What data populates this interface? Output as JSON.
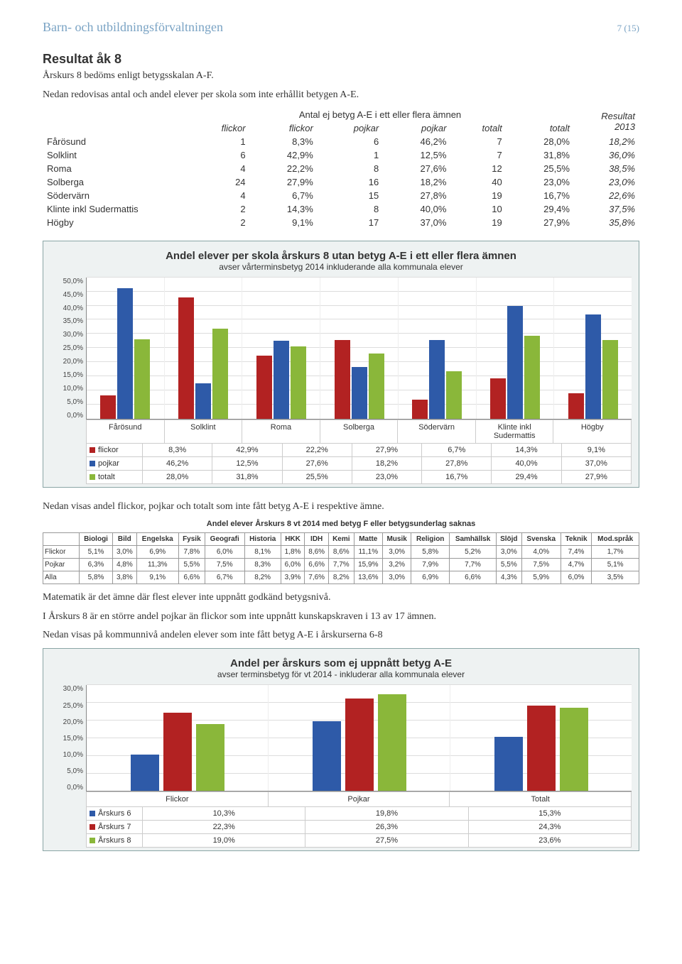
{
  "header": {
    "dept": "Barn- och utbildningsförvaltningen",
    "page_num": "7 (15)"
  },
  "section": {
    "title": "Resultat åk 8",
    "line1": "Årskurs 8 bedöms enligt betygsskalan A-F.",
    "line2": "Nedan redovisas antal och andel elever per skola som inte erhållit betygen A-E."
  },
  "table1": {
    "supertitle": "Antal ej betyg A-E i ett eller flera ämnen",
    "cols": [
      "flickor",
      "flickor",
      "pojkar",
      "pojkar",
      "totalt",
      "totalt"
    ],
    "res_label": "Resultat 2013",
    "rows": [
      {
        "name": "Fårösund",
        "v": [
          "1",
          "8,3%",
          "6",
          "46,2%",
          "7",
          "28,0%"
        ],
        "r": "18,2%"
      },
      {
        "name": "Solklint",
        "v": [
          "6",
          "42,9%",
          "1",
          "12,5%",
          "7",
          "31,8%"
        ],
        "r": "36,0%"
      },
      {
        "name": "Roma",
        "v": [
          "4",
          "22,2%",
          "8",
          "27,6%",
          "12",
          "25,5%"
        ],
        "r": "38,5%"
      },
      {
        "name": "Solberga",
        "v": [
          "24",
          "27,9%",
          "16",
          "18,2%",
          "40",
          "23,0%"
        ],
        "r": "23,0%"
      },
      {
        "name": "Södervärn",
        "v": [
          "4",
          "6,7%",
          "15",
          "27,8%",
          "19",
          "16,7%"
        ],
        "r": "22,6%"
      },
      {
        "name": "Klinte inkl Sudermattis",
        "v": [
          "2",
          "14,3%",
          "8",
          "40,0%",
          "10",
          "29,4%"
        ],
        "r": "37,5%"
      },
      {
        "name": "Högby",
        "v": [
          "2",
          "9,1%",
          "17",
          "37,0%",
          "19",
          "27,9%"
        ],
        "r": "35,8%"
      }
    ]
  },
  "chart1": {
    "title": "Andel elever per skola årskurs 8 utan betyg A-E i ett eller flera ämnen",
    "sub": "avser vårterminsbetyg 2014 inkluderande alla kommunala elever",
    "ymax": 50,
    "ystep": 5,
    "yticks": [
      "0,0%",
      "5,0%",
      "10,0%",
      "15,0%",
      "20,0%",
      "25,0%",
      "30,0%",
      "35,0%",
      "40,0%",
      "45,0%",
      "50,0%"
    ],
    "categories": [
      "Fårösund",
      "Solklint",
      "Roma",
      "Solberga",
      "Södervärn",
      "Klinte inkl Sudermattis",
      "Högby"
    ],
    "series": [
      {
        "label": "flickor",
        "color": "red",
        "values": [
          8.3,
          42.9,
          22.2,
          27.9,
          6.7,
          14.3,
          9.1
        ],
        "display": [
          "8,3%",
          "42,9%",
          "22,2%",
          "27,9%",
          "6,7%",
          "14,3%",
          "9,1%"
        ]
      },
      {
        "label": "pojkar",
        "color": "blue",
        "values": [
          46.2,
          12.5,
          27.6,
          18.2,
          27.8,
          40.0,
          37.0
        ],
        "display": [
          "46,2%",
          "12,5%",
          "27,6%",
          "18,2%",
          "27,8%",
          "40,0%",
          "37,0%"
        ]
      },
      {
        "label": "totalt",
        "color": "green",
        "values": [
          28.0,
          31.8,
          25.5,
          23.0,
          16.7,
          29.4,
          27.9
        ],
        "display": [
          "28,0%",
          "31,8%",
          "25,5%",
          "23,0%",
          "16,7%",
          "29,4%",
          "27,9%"
        ]
      }
    ]
  },
  "mid_text": "Nedan visas andel flickor, pojkar och totalt som inte fått betyg A-E i respektive ämne.",
  "subjects": {
    "title": "Andel elever Årskurs 8 vt 2014 med betyg F eller betygsunderlag saknas",
    "cols": [
      "Biologi",
      "Bild",
      "Engelska",
      "Fysik",
      "Geografi",
      "Historia",
      "HKK",
      "IDH",
      "Kemi",
      "Matte",
      "Musik",
      "Religion",
      "Samhällsk",
      "Slöjd",
      "Svenska",
      "Teknik",
      "Mod.språk"
    ],
    "rows": [
      {
        "name": "Flickor",
        "v": [
          "5,1%",
          "3,0%",
          "6,9%",
          "7,8%",
          "6,0%",
          "8,1%",
          "1,8%",
          "8,6%",
          "8,6%",
          "11,1%",
          "3,0%",
          "5,8%",
          "5,2%",
          "3,0%",
          "4,0%",
          "7,4%",
          "1,7%"
        ]
      },
      {
        "name": "Pojkar",
        "v": [
          "6,3%",
          "4,8%",
          "11,3%",
          "5,5%",
          "7,5%",
          "8,3%",
          "6,0%",
          "6,6%",
          "7,7%",
          "15,9%",
          "3,2%",
          "7,9%",
          "7,7%",
          "5,5%",
          "7,5%",
          "4,7%",
          "5,1%"
        ]
      },
      {
        "name": "Alla",
        "v": [
          "5,8%",
          "3,8%",
          "9,1%",
          "6,6%",
          "6,7%",
          "8,2%",
          "3,9%",
          "7,6%",
          "8,2%",
          "13,6%",
          "3,0%",
          "6,9%",
          "6,6%",
          "4,3%",
          "5,9%",
          "6,0%",
          "3,5%"
        ]
      }
    ]
  },
  "after_subjects": [
    "Matematik är det ämne där flest elever inte uppnått godkänd betygsnivå.",
    "I Årskurs 8 är en större andel pojkar än flickor som inte uppnått kunskapskraven i 13 av 17 ämnen.",
    "Nedan visas på kommunnivå andelen elever som inte fått betyg A-E i årskurserna 6-8"
  ],
  "chart2": {
    "title": "Andel per årskurs som ej uppnått betyg A-E",
    "sub": "avser terminsbetyg för vt 2014 - inkluderar alla kommunala elever",
    "ymax": 30,
    "ystep": 5,
    "yticks": [
      "0,0%",
      "5,0%",
      "10,0%",
      "15,0%",
      "20,0%",
      "25,0%",
      "30,0%"
    ],
    "categories": [
      "Flickor",
      "Pojkar",
      "Totalt"
    ],
    "series": [
      {
        "label": "Årskurs 6",
        "color": "blue",
        "values": [
          10.3,
          19.8,
          15.3
        ],
        "display": [
          "10,3%",
          "19,8%",
          "15,3%"
        ]
      },
      {
        "label": "Årskurs 7",
        "color": "red",
        "values": [
          22.3,
          26.3,
          24.3
        ],
        "display": [
          "22,3%",
          "26,3%",
          "24,3%"
        ]
      },
      {
        "label": "Årskurs 8",
        "color": "green",
        "values": [
          19.0,
          27.5,
          23.6
        ],
        "display": [
          "19,0%",
          "27,5%",
          "23,6%"
        ]
      }
    ]
  }
}
